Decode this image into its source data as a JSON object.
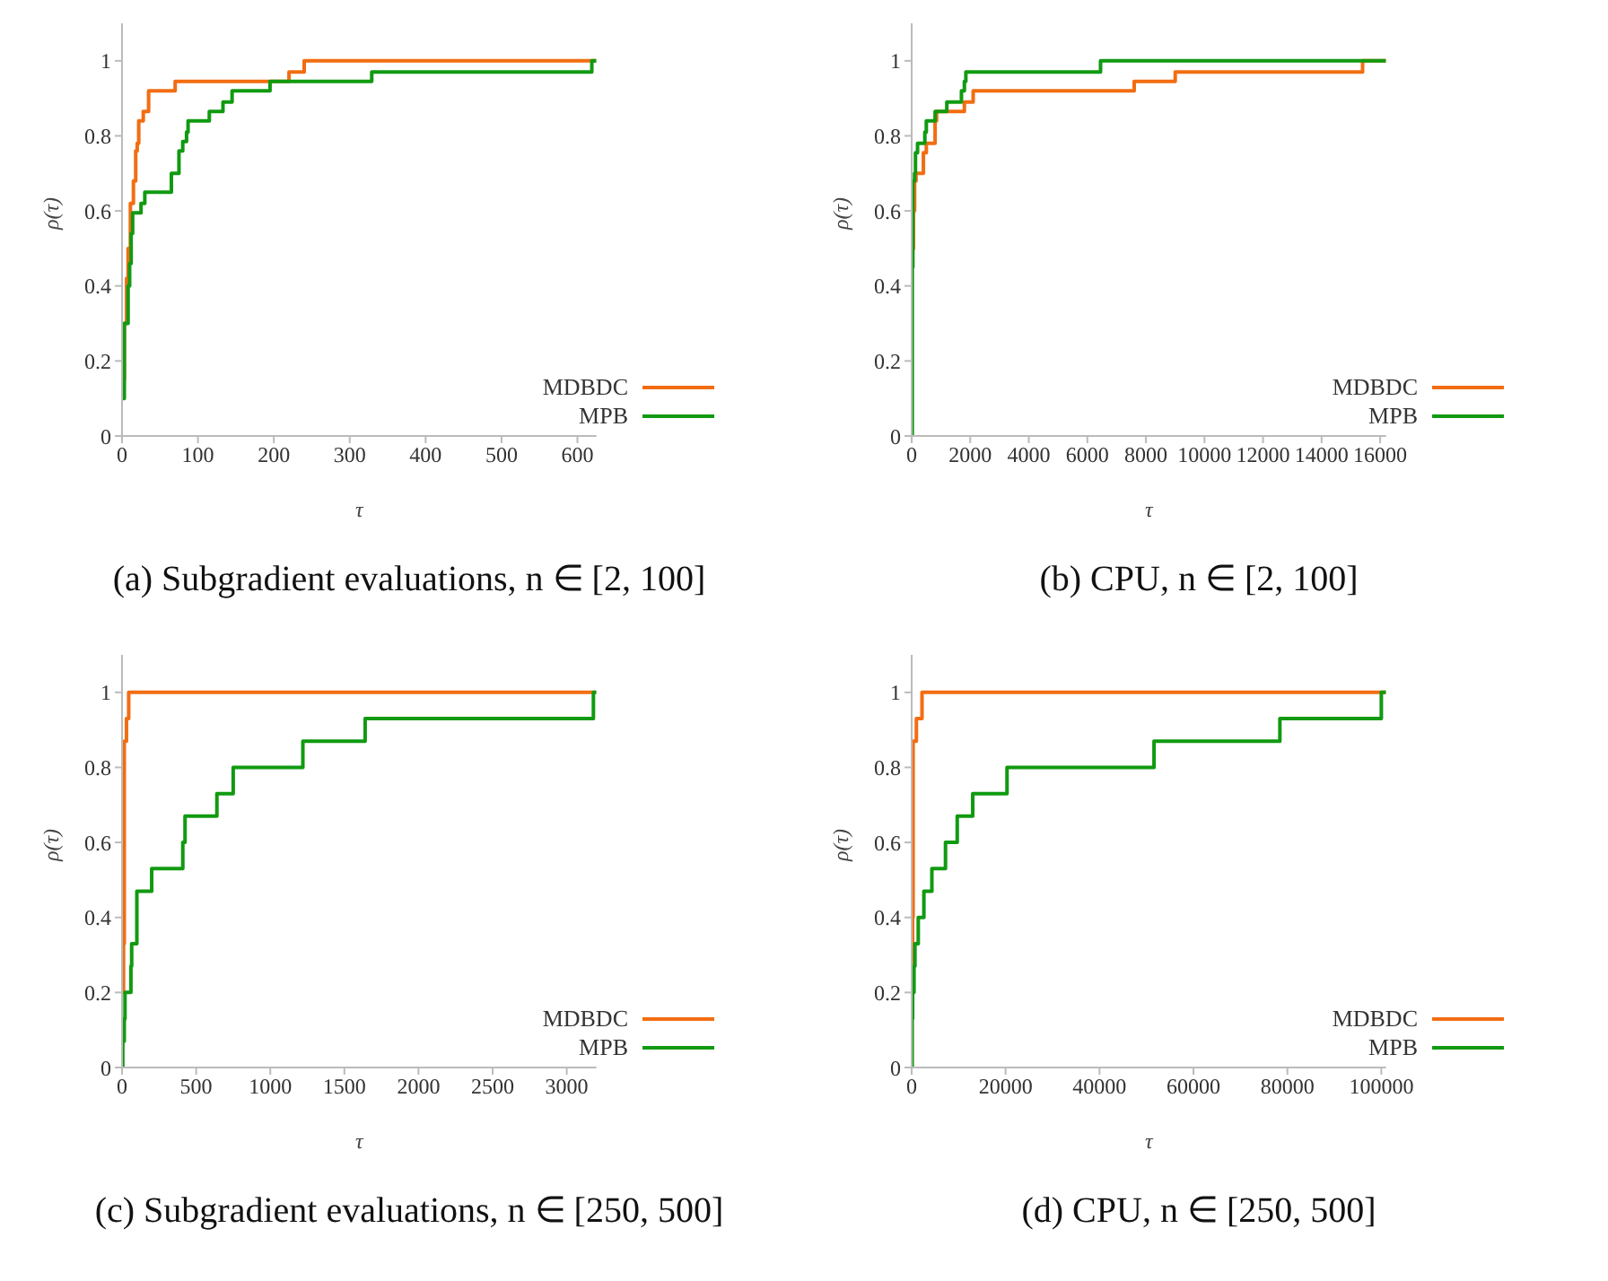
{
  "chart_data": [
    {
      "type": "step",
      "title": "(a) Subgradient evaluations, n ∈ [2, 100]",
      "xlabel": "τ",
      "ylabel": "ρ(τ)",
      "xlim": [
        0,
        625
      ],
      "xticks": [
        0,
        100,
        200,
        300,
        400,
        500,
        600
      ],
      "ylim": [
        0,
        1.1
      ],
      "yticks": [
        0,
        0.2,
        0.4,
        0.6,
        0.8,
        1
      ],
      "legend": "bottom right",
      "series": [
        {
          "name": "MDBDC",
          "color": "#f26d12",
          "x": [
            1,
            3,
            6,
            8,
            11,
            15,
            18,
            20,
            22,
            28,
            35,
            70,
            220,
            240,
            625
          ],
          "values": [
            0.15,
            0.3,
            0.42,
            0.5,
            0.62,
            0.68,
            0.76,
            0.78,
            0.84,
            0.865,
            0.92,
            0.945,
            0.97,
            1,
            1
          ]
        },
        {
          "name": "MPB",
          "color": "#119a11",
          "x": [
            1,
            3,
            8,
            10,
            12,
            14,
            25,
            30,
            65,
            75,
            80,
            85,
            87,
            115,
            133,
            145,
            195,
            329,
            619,
            625
          ],
          "values": [
            0.1,
            0.3,
            0.4,
            0.46,
            0.54,
            0.595,
            0.62,
            0.65,
            0.7,
            0.76,
            0.785,
            0.81,
            0.84,
            0.865,
            0.89,
            0.92,
            0.945,
            0.97,
            1,
            1
          ]
        }
      ]
    },
    {
      "type": "step",
      "title": "(b) CPU, n ∈ [2, 100]",
      "xlabel": "τ",
      "ylabel": "ρ(τ)",
      "xlim": [
        0,
        16200
      ],
      "xticks": [
        0,
        2000,
        4000,
        6000,
        8000,
        10000,
        12000,
        14000,
        16000
      ],
      "ylim": [
        0,
        1.1
      ],
      "yticks": [
        0,
        0.2,
        0.4,
        0.6,
        0.8,
        1
      ],
      "legend": "bottom right",
      "series": [
        {
          "name": "MDBDC",
          "color": "#f26d12",
          "x": [
            20,
            60,
            100,
            150,
            400,
            500,
            800,
            850,
            1800,
            2100,
            7600,
            9000,
            15400,
            16200
          ],
          "values": [
            0.5,
            0.6,
            0.68,
            0.7,
            0.755,
            0.78,
            0.84,
            0.865,
            0.89,
            0.92,
            0.945,
            0.97,
            1,
            1
          ]
        },
        {
          "name": "MPB",
          "color": "#119a11",
          "x": [
            1,
            20,
            40,
            100,
            130,
            200,
            450,
            500,
            800,
            1200,
            1700,
            1800,
            1850,
            6450,
            16200
          ],
          "values": [
            0,
            0.45,
            0.68,
            0.7,
            0.755,
            0.78,
            0.81,
            0.84,
            0.865,
            0.89,
            0.92,
            0.945,
            0.97,
            1,
            1
          ]
        }
      ]
    },
    {
      "type": "step",
      "title": "(c) Subgradient evaluations, n ∈ [250, 500]",
      "xlabel": "τ",
      "ylabel": "ρ(τ)",
      "xlim": [
        0,
        3200
      ],
      "xticks": [
        0,
        500,
        1000,
        1500,
        2000,
        2500,
        3000
      ],
      "ylim": [
        0,
        1.1
      ],
      "yticks": [
        0,
        0.2,
        0.4,
        0.6,
        0.8,
        1
      ],
      "legend": "bottom right",
      "series": [
        {
          "name": "MDBDC",
          "color": "#f26d12",
          "x": [
            5,
            10,
            15,
            30,
            45,
            3200
          ],
          "values": [
            0.2,
            0.33,
            0.87,
            0.93,
            1,
            1
          ]
        },
        {
          "name": "MPB",
          "color": "#119a11",
          "x": [
            1,
            5,
            15,
            20,
            60,
            65,
            100,
            200,
            410,
            425,
            640,
            750,
            1220,
            1640,
            3180,
            3200
          ],
          "values": [
            0,
            0.07,
            0.13,
            0.2,
            0.27,
            0.33,
            0.47,
            0.53,
            0.6,
            0.67,
            0.73,
            0.8,
            0.87,
            0.93,
            1,
            1
          ]
        }
      ]
    },
    {
      "type": "step",
      "title": "(d) CPU, n ∈ [250, 500]",
      "xlabel": "τ",
      "ylabel": "ρ(τ)",
      "xlim": [
        0,
        101000
      ],
      "xticks": [
        0,
        20000,
        40000,
        60000,
        80000,
        100000
      ],
      "ylim": [
        0,
        1.1
      ],
      "yticks": [
        0,
        0.2,
        0.4,
        0.6,
        0.8,
        1
      ],
      "legend": "bottom right",
      "series": [
        {
          "name": "MDBDC",
          "color": "#f26d12",
          "x": [
            50,
            200,
            300,
            1000,
            2200,
            101000
          ],
          "values": [
            0.2,
            0.4,
            0.87,
            0.93,
            1,
            1
          ]
        },
        {
          "name": "MPB",
          "color": "#119a11",
          "x": [
            1,
            100,
            200,
            500,
            700,
            1400,
            2600,
            4300,
            7200,
            9700,
            13000,
            20300,
            51600,
            78400,
            100000,
            101000
          ],
          "values": [
            0,
            0.13,
            0.2,
            0.27,
            0.33,
            0.4,
            0.47,
            0.53,
            0.6,
            0.67,
            0.73,
            0.8,
            0.87,
            0.93,
            1,
            1
          ]
        }
      ]
    }
  ]
}
